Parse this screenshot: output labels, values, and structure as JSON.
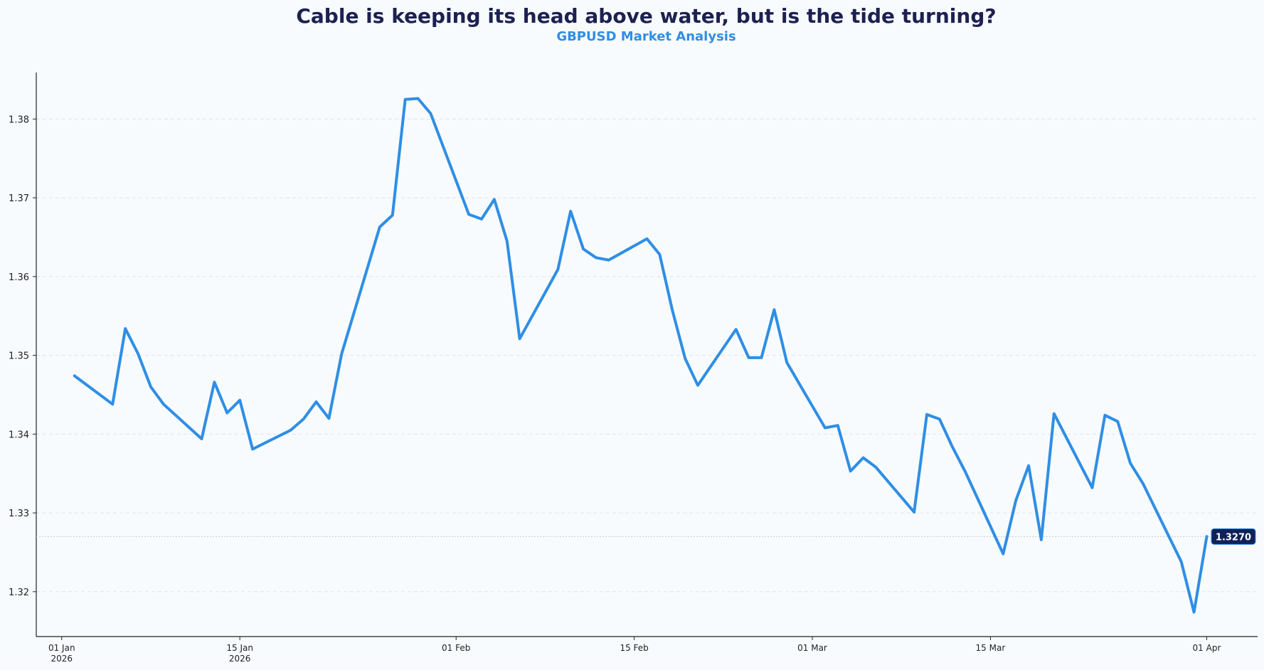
{
  "chart_data": {
    "type": "line",
    "title": "Cable is keeping its head above water, but is the tide turning?",
    "subtitle": "GBPUSD Market Analysis",
    "xlabel": "",
    "ylabel": "",
    "series": [
      {
        "name": "GBPUSD",
        "color": "#2f8ee5",
        "x": [
          "2026-01-02",
          "2026-01-05",
          "2026-01-06",
          "2026-01-07",
          "2026-01-08",
          "2026-01-09",
          "2026-01-12",
          "2026-01-13",
          "2026-01-14",
          "2026-01-15",
          "2026-01-16",
          "2026-01-19",
          "2026-01-20",
          "2026-01-21",
          "2026-01-22",
          "2026-01-23",
          "2026-01-26",
          "2026-01-27",
          "2026-01-28",
          "2026-01-29",
          "2026-01-30",
          "2026-02-02",
          "2026-02-03",
          "2026-02-04",
          "2026-02-05",
          "2026-02-06",
          "2026-02-09",
          "2026-02-10",
          "2026-02-11",
          "2026-02-12",
          "2026-02-13",
          "2026-02-16",
          "2026-02-17",
          "2026-02-18",
          "2026-02-19",
          "2026-02-20",
          "2026-02-23",
          "2026-02-24",
          "2026-02-25",
          "2026-02-26",
          "2026-02-27",
          "2026-03-02",
          "2026-03-03",
          "2026-03-04",
          "2026-03-05",
          "2026-03-06",
          "2026-03-09",
          "2026-03-10",
          "2026-03-11",
          "2026-03-12",
          "2026-03-13",
          "2026-03-16",
          "2026-03-17",
          "2026-03-18",
          "2026-03-19",
          "2026-03-20",
          "2026-03-23",
          "2026-03-24",
          "2026-03-25",
          "2026-03-26",
          "2026-03-27",
          "2026-03-30",
          "2026-03-31",
          "2026-04-01"
        ],
        "values": [
          1.3474,
          1.3438,
          1.3534,
          1.3502,
          1.346,
          1.3438,
          1.3394,
          1.3466,
          1.3427,
          1.3443,
          1.3381,
          1.3405,
          1.3419,
          1.3441,
          1.342,
          1.3502,
          1.3663,
          1.3678,
          1.3825,
          1.3826,
          1.3807,
          1.3679,
          1.3673,
          1.3698,
          1.3645,
          1.3521,
          1.3609,
          1.3683,
          1.3635,
          1.3624,
          1.3621,
          1.3648,
          1.3628,
          1.3557,
          1.3496,
          1.3462,
          1.3533,
          1.3497,
          1.3497,
          1.3558,
          1.3491,
          1.3408,
          1.3411,
          1.3353,
          1.337,
          1.3358,
          1.3301,
          1.3425,
          1.3419,
          1.3384,
          1.3353,
          1.3248,
          1.3316,
          1.336,
          1.3266,
          1.3426,
          1.3332,
          1.3424,
          1.3416,
          1.3363,
          1.3337,
          1.3238,
          1.3174,
          1.327
        ]
      }
    ],
    "xlim": [
      "2025-12-30",
      "2026-04-05"
    ],
    "ylim": [
      1.3143,
      1.3859
    ],
    "yticks": [
      {
        "value": 1.32,
        "label": "1.32"
      },
      {
        "value": 1.33,
        "label": "1.33"
      },
      {
        "value": 1.34,
        "label": "1.34"
      },
      {
        "value": 1.35,
        "label": "1.35"
      },
      {
        "value": 1.36,
        "label": "1.36"
      },
      {
        "value": 1.37,
        "label": "1.37"
      },
      {
        "value": 1.38,
        "label": "1.38"
      }
    ],
    "xticks": [
      {
        "date": "2026-01-01",
        "line1": "01 Jan",
        "line2": "2026"
      },
      {
        "date": "2026-01-15",
        "line1": "15 Jan",
        "line2": "2026"
      },
      {
        "date": "2026-02-01",
        "line1": "01 Feb",
        "line2": ""
      },
      {
        "date": "2026-02-15",
        "line1": "15 Feb",
        "line2": ""
      },
      {
        "date": "2026-03-01",
        "line1": "01 Mar",
        "line2": ""
      },
      {
        "date": "2026-03-15",
        "line1": "15 Mar",
        "line2": ""
      },
      {
        "date": "2026-04-01",
        "line1": "01 Apr",
        "line2": ""
      }
    ],
    "grid": "horizontal-dashed",
    "last_value": {
      "value": 1.327,
      "label": "1.3270",
      "badge_color": "#0f2257",
      "text_color": "#ffffff"
    }
  }
}
